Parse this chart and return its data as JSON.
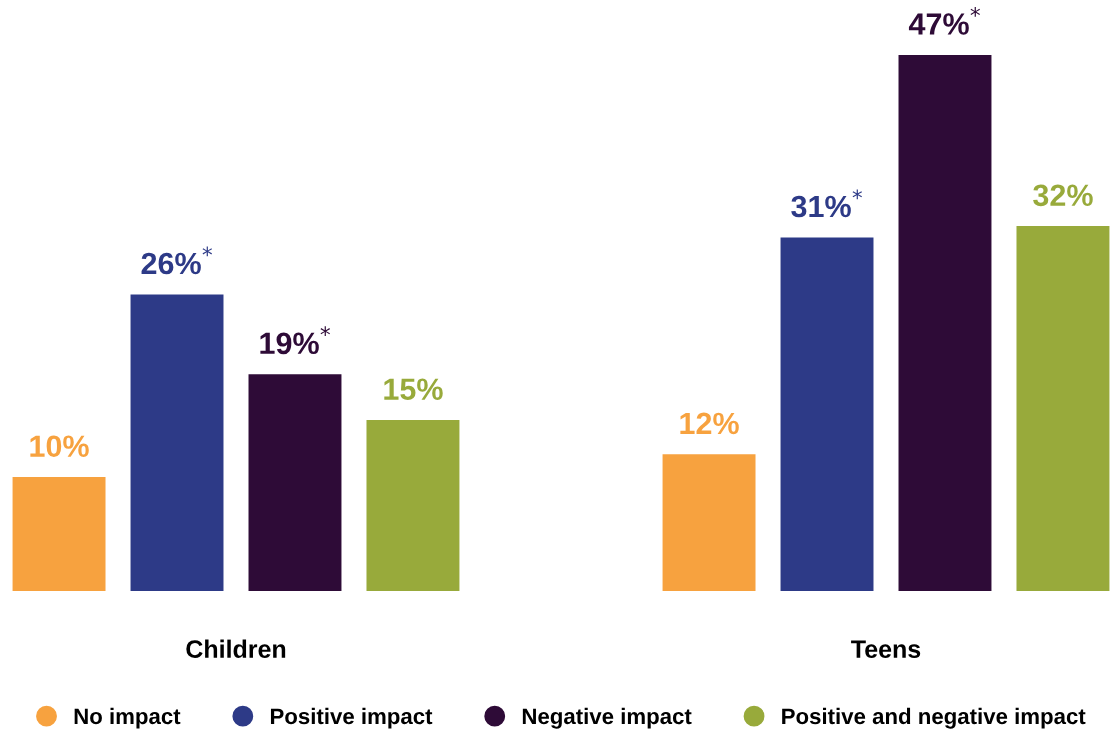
{
  "chart_data": {
    "type": "bar",
    "categories": [
      "Children",
      "Teens"
    ],
    "series": [
      {
        "name": "No impact",
        "color": "#f7a23f",
        "values": [
          10,
          12
        ],
        "value_labels": [
          "10%",
          "12%"
        ]
      },
      {
        "name": "Positive impact",
        "color": "#2d3a87",
        "values": [
          26,
          31
        ],
        "value_labels": [
          "26%$^{*}$",
          "31%$^{*}$"
        ]
      },
      {
        "name": "Negative impact",
        "color": "#2e0b37",
        "values": [
          19,
          47
        ],
        "value_labels": [
          "19%$^{*}$",
          "47%$^{*}$"
        ]
      },
      {
        "name": "Positive and negative impact",
        "color": "#98aa3b",
        "values": [
          15,
          32
        ],
        "value_labels": [
          "15%",
          "32%"
        ]
      }
    ],
    "legend": "bottom",
    "grid": false
  }
}
